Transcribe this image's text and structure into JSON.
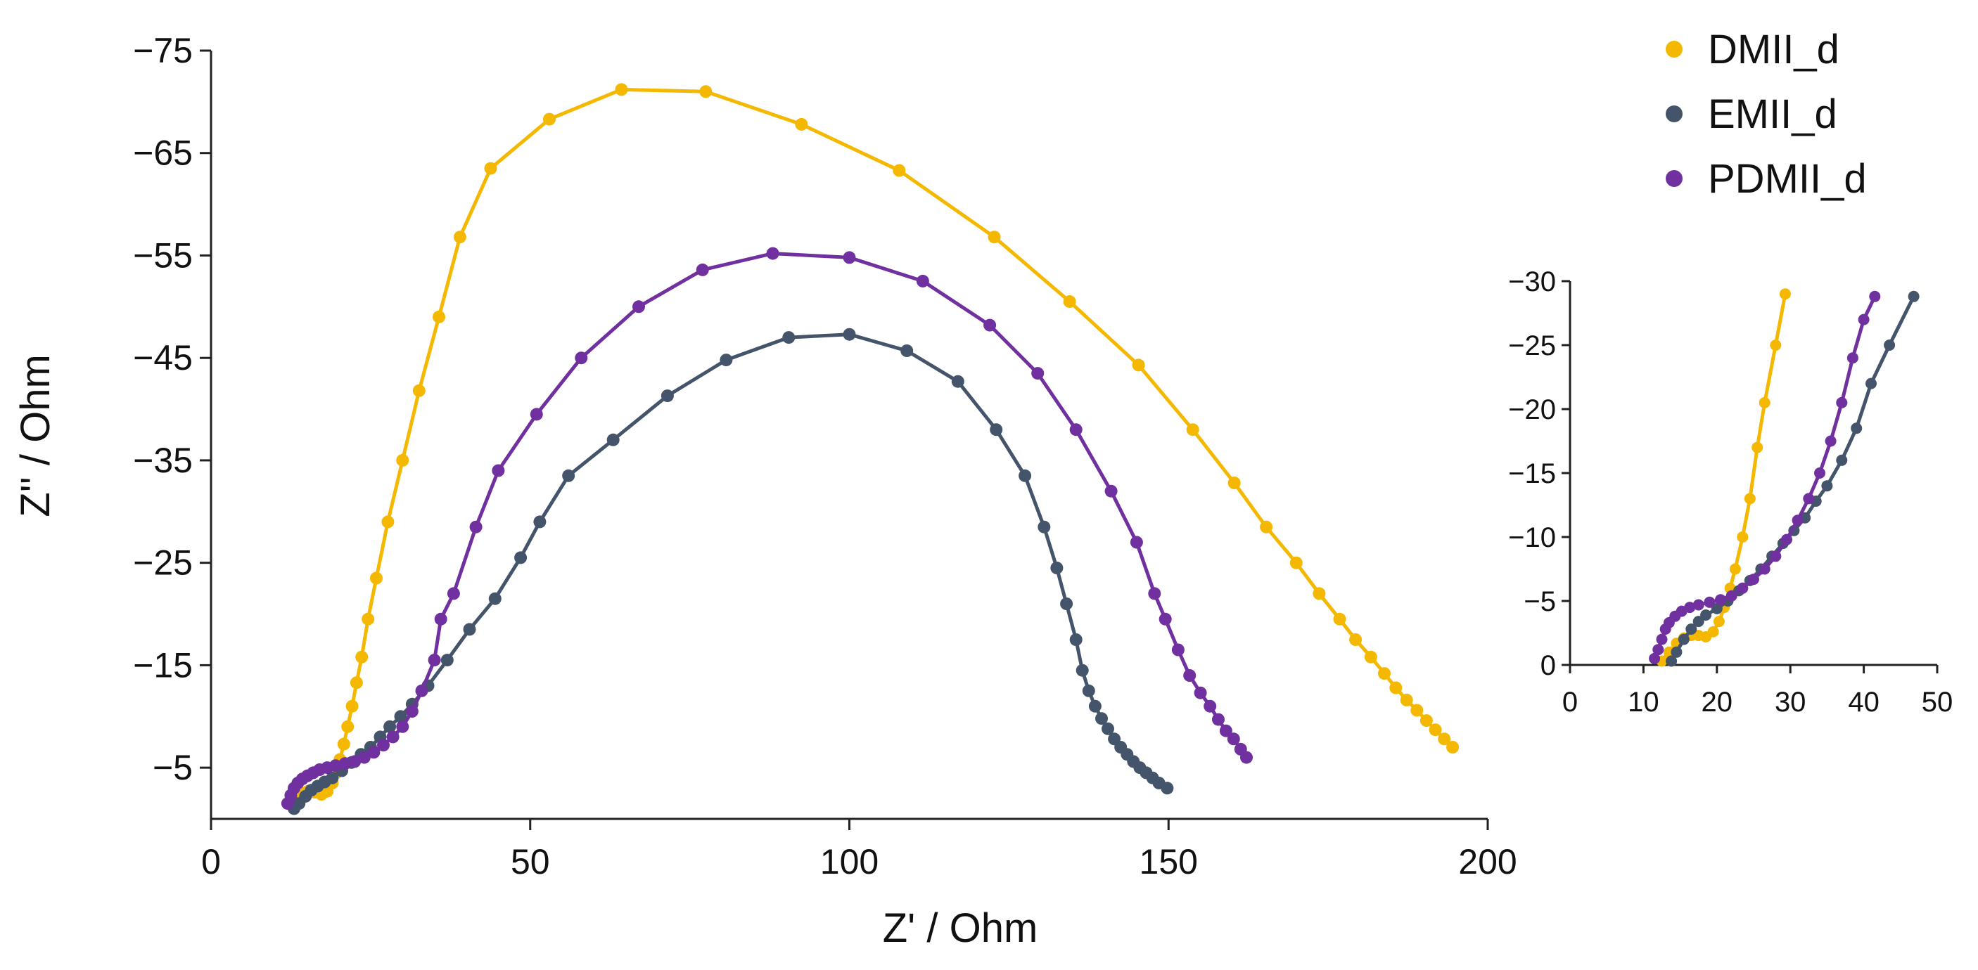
{
  "colors": {
    "dmii": "#f5b800",
    "emii": "#44546a",
    "pdmii": "#7030a0"
  },
  "chart_data": [
    {
      "type": "scatter",
      "name": "main",
      "xlabel": "Z' / Ohm",
      "ylabel": "Z'' / Ohm",
      "xlim": [
        0,
        200
      ],
      "ylim": [
        0,
        -75
      ],
      "x_ticks": [
        0,
        50,
        100,
        150,
        200
      ],
      "x_tick_labels": [
        "0",
        "50",
        "100",
        "150",
        "200"
      ],
      "y_ticks": [
        -5,
        -15,
        -25,
        -35,
        -45,
        -55,
        -65,
        -75
      ],
      "y_tick_labels": [
        "−5",
        "−15",
        "−25",
        "−35",
        "−45",
        "−55",
        "−65",
        "−75"
      ],
      "legend": "top-right",
      "series": [
        {
          "name": "DMII_d",
          "color_key": "dmii",
          "x": [
            12.5,
            13.3,
            14.2,
            15.2,
            16.3,
            17.3,
            18.2,
            19.0,
            19.6,
            20.2,
            20.8,
            21.4,
            22.1,
            22.8,
            23.6,
            24.6,
            25.9,
            27.7,
            30.0,
            32.6,
            35.7,
            39.0,
            43.8,
            53.0,
            64.3,
            77.5,
            92.5,
            107.8,
            122.7,
            134.5,
            145.3,
            153.8,
            160.3,
            165.3,
            170.0,
            173.6,
            176.8,
            179.3,
            181.7,
            183.8,
            185.6,
            187.3,
            188.9,
            190.4,
            191.8,
            193.2,
            194.5
          ],
          "y": [
            -1.5,
            -2.0,
            -2.5,
            -2.7,
            -2.6,
            -2.4,
            -2.7,
            -3.5,
            -4.5,
            -5.8,
            -7.3,
            -9.0,
            -11.0,
            -13.3,
            -15.8,
            -19.5,
            -23.5,
            -29.0,
            -35.0,
            -41.8,
            -49.0,
            -56.8,
            -63.5,
            -68.3,
            -71.2,
            -71.0,
            -67.8,
            -63.3,
            -56.8,
            -50.5,
            -44.3,
            -38.0,
            -32.8,
            -28.5,
            -25.0,
            -22.0,
            -19.5,
            -17.5,
            -15.8,
            -14.2,
            -12.8,
            -11.6,
            -10.6,
            -9.6,
            -8.7,
            -7.8,
            -7.0
          ],
          "inset_x": [
            12.5,
            13.5,
            14.5,
            15.5,
            16.5,
            17.5,
            18.5,
            19.5,
            20.3,
            21.0,
            21.8,
            22.5,
            23.5,
            24.5,
            25.5,
            26.5,
            28.0,
            29.3
          ],
          "inset_y": [
            -0.3,
            -1.0,
            -1.7,
            -2.1,
            -2.3,
            -2.3,
            -2.2,
            -2.6,
            -3.4,
            -4.5,
            -6.0,
            -7.5,
            -10.0,
            -13.0,
            -17.0,
            -20.5,
            -25.0,
            -29.0
          ]
        },
        {
          "name": "EMII_d",
          "color_key": "emii",
          "x": [
            13.0,
            13.8,
            14.8,
            15.7,
            16.7,
            17.8,
            19.0,
            20.5,
            22.0,
            23.5,
            25.0,
            26.5,
            28.0,
            29.7,
            31.5,
            34.0,
            37.0,
            40.5,
            44.5,
            48.5,
            51.5,
            56.0,
            63.0,
            71.5,
            80.7,
            90.5,
            100.0,
            109.0,
            117.0,
            123.0,
            127.5,
            130.5,
            132.5,
            134.0,
            135.5,
            136.5,
            137.5,
            138.5,
            139.5,
            140.5,
            141.5,
            142.5,
            143.5,
            144.5,
            145.5,
            146.5,
            147.5,
            148.5,
            149.8
          ],
          "y": [
            -1.0,
            -1.5,
            -2.2,
            -2.8,
            -3.2,
            -3.6,
            -4.0,
            -4.7,
            -5.5,
            -6.3,
            -7.0,
            -8.0,
            -9.0,
            -10.0,
            -11.2,
            -13.0,
            -15.5,
            -18.5,
            -21.5,
            -25.5,
            -29.0,
            -33.5,
            -37.0,
            -41.3,
            -44.8,
            -47.0,
            -47.3,
            -45.7,
            -42.7,
            -38.0,
            -33.5,
            -28.5,
            -24.5,
            -21.0,
            -17.5,
            -14.5,
            -12.5,
            -11.0,
            -9.8,
            -8.8,
            -7.8,
            -7.0,
            -6.3,
            -5.6,
            -5.0,
            -4.5,
            -4.0,
            -3.5,
            -3.0
          ],
          "inset_x": [
            13.8,
            14.5,
            15.5,
            16.5,
            17.5,
            18.5,
            20.0,
            21.5,
            23.0,
            24.5,
            26.0,
            27.5,
            29.0,
            30.5,
            32.0,
            33.5,
            35.0,
            37.0,
            39.0,
            41.0,
            43.5,
            46.8
          ],
          "inset_y": [
            -0.3,
            -1.0,
            -2.0,
            -2.8,
            -3.4,
            -3.9,
            -4.4,
            -5.0,
            -5.8,
            -6.6,
            -7.5,
            -8.5,
            -9.5,
            -10.5,
            -11.5,
            -12.8,
            -14.0,
            -16.0,
            -18.5,
            -22.0,
            -25.0,
            -28.8
          ]
        },
        {
          "name": "PDMII_d",
          "color_key": "pdmii",
          "x": [
            12.0,
            12.5,
            13.0,
            13.6,
            14.3,
            15.1,
            16.0,
            17.0,
            18.2,
            19.5,
            21.0,
            22.5,
            24.0,
            25.5,
            27.0,
            28.5,
            30.0,
            31.5,
            33.0,
            35.0,
            36.0,
            38.0,
            41.5,
            45.0,
            51.0,
            58.0,
            67.0,
            77.0,
            88.0,
            100.0,
            111.5,
            122.0,
            129.5,
            135.5,
            141.0,
            145.0,
            147.8,
            149.5,
            151.5,
            153.3,
            155.0,
            156.5,
            157.8,
            159.0,
            160.2,
            161.3,
            162.2
          ],
          "y": [
            -1.5,
            -2.3,
            -3.0,
            -3.5,
            -3.9,
            -4.2,
            -4.5,
            -4.8,
            -5.0,
            -5.2,
            -5.4,
            -5.6,
            -6.0,
            -6.5,
            -7.2,
            -8.0,
            -9.0,
            -10.5,
            -12.5,
            -15.5,
            -19.5,
            -22.0,
            -28.5,
            -34.0,
            -39.5,
            -45.0,
            -50.0,
            -53.6,
            -55.2,
            -54.8,
            -52.5,
            -48.2,
            -43.5,
            -38.0,
            -32.0,
            -27.0,
            -22.0,
            -19.5,
            -16.5,
            -14.0,
            -12.3,
            -11.0,
            -9.7,
            -8.6,
            -7.8,
            -6.8,
            -6.0
          ],
          "inset_x": [
            11.5,
            12.0,
            12.5,
            13.0,
            13.5,
            14.3,
            15.2,
            16.3,
            17.5,
            19.0,
            20.5,
            22.0,
            23.5,
            25.0,
            26.5,
            28.0,
            29.5,
            31.0,
            32.5,
            34.0,
            35.5,
            37.0,
            38.5,
            40.0,
            41.5
          ],
          "inset_y": [
            -0.5,
            -1.2,
            -2.0,
            -2.8,
            -3.3,
            -3.8,
            -4.2,
            -4.5,
            -4.7,
            -4.9,
            -5.1,
            -5.4,
            -6.0,
            -6.7,
            -7.5,
            -8.5,
            -9.8,
            -11.3,
            -13.0,
            -15.0,
            -17.5,
            -20.5,
            -24.0,
            -27.0,
            -28.8
          ]
        }
      ]
    },
    {
      "type": "scatter",
      "name": "inset",
      "xlim": [
        0,
        50
      ],
      "ylim": [
        0,
        -30
      ],
      "x_ticks": [
        0,
        10,
        20,
        30,
        40,
        50
      ],
      "x_tick_labels": [
        "0",
        "10",
        "20",
        "30",
        "40",
        "50"
      ],
      "y_ticks": [
        0,
        -5,
        -10,
        -15,
        -20,
        -25,
        -30
      ],
      "y_tick_labels": [
        "0",
        "−5",
        "−10",
        "−15",
        "−20",
        "−25",
        "−30"
      ]
    }
  ]
}
